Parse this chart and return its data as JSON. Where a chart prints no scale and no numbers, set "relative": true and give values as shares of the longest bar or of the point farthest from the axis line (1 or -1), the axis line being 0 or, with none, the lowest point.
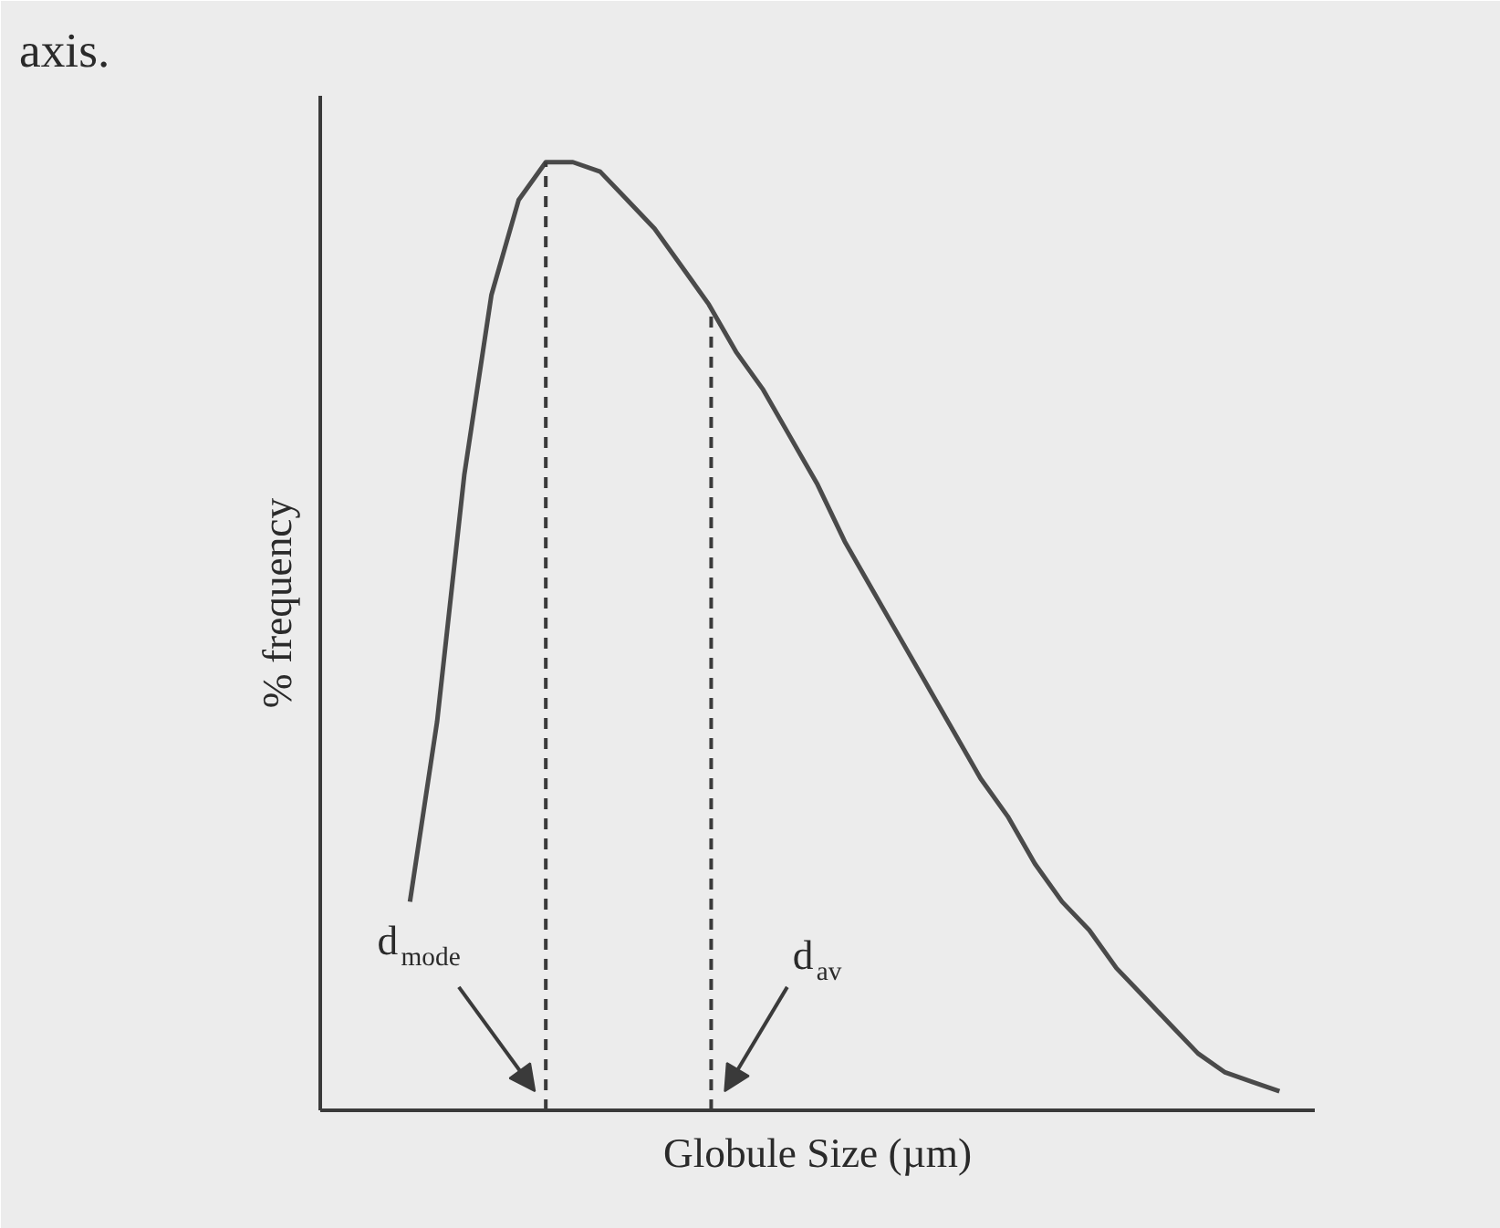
{
  "chart_data": {
    "type": "line",
    "relative": true,
    "xlabel": "Globule Size (µm)",
    "ylabel": "% frequency",
    "categories": [
      null,
      null,
      null,
      null,
      null,
      null,
      null,
      null,
      null,
      null,
      null,
      null,
      null,
      null,
      null,
      null,
      null,
      null,
      null,
      null,
      null,
      null,
      null,
      null,
      null,
      null,
      null,
      null,
      null,
      null,
      null,
      null,
      null,
      null,
      null,
      null,
      null
    ],
    "series": [
      {
        "color": "#4a4a4a",
        "values": [
          null,
          null,
          null,
          0.22,
          0.41,
          0.67,
          0.86,
          0.96,
          1.0,
          1.0,
          0.99,
          0.96,
          0.93,
          0.89,
          0.85,
          0.8,
          0.76,
          0.71,
          0.66,
          0.6,
          0.55,
          0.5,
          0.45,
          0.4,
          0.35,
          0.31,
          0.26,
          0.22,
          0.19,
          0.15,
          0.12,
          0.09,
          0.06,
          0.04,
          0.03,
          0.02,
          null
        ]
      }
    ],
    "annotations": [
      "axis.",
      "d$_{mode}$",
      "d$_{av}$"
    ],
    "grid": false,
    "marker": "none",
    "line_style": "solid"
  }
}
